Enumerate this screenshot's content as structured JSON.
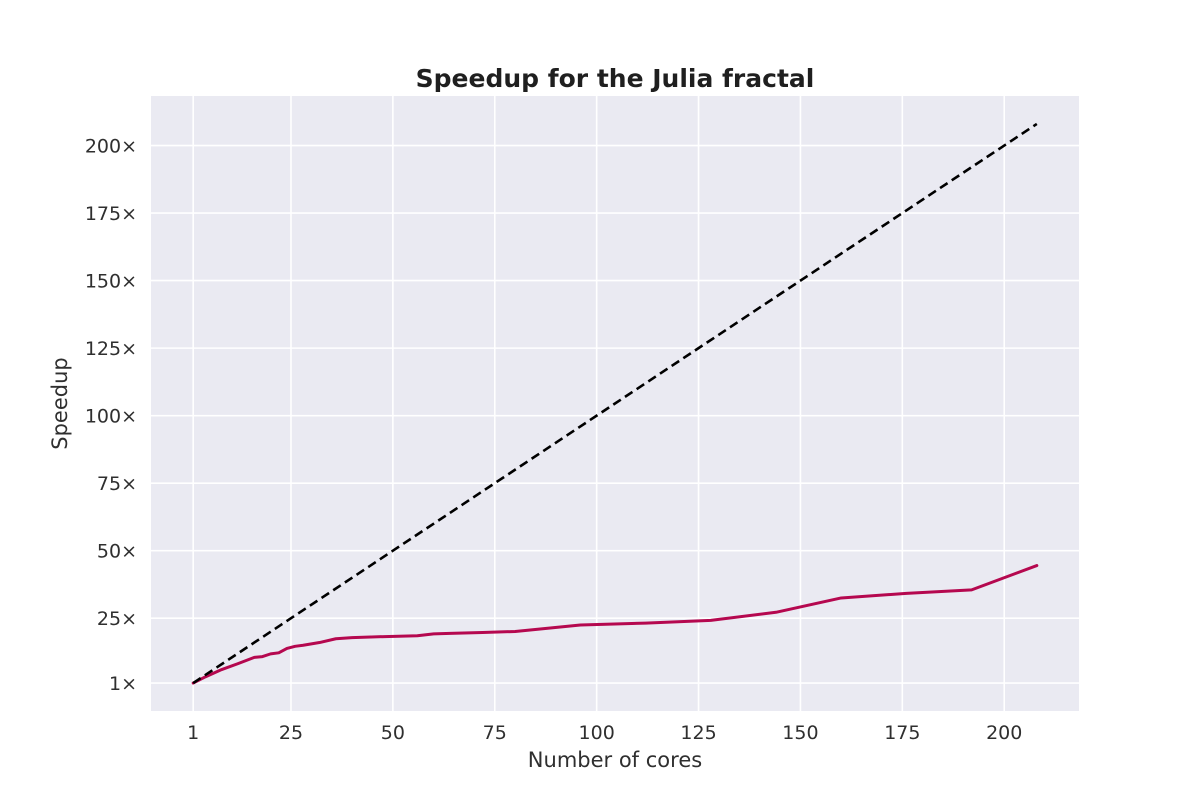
{
  "chart_data": {
    "type": "line",
    "title": "Speedup for the Julia fractal",
    "xlabel": "Number of cores",
    "ylabel": "Speedup",
    "xlim": [
      -9.35,
      218.35
    ],
    "ylim": [
      -9.35,
      218.35
    ],
    "x_ticks": [
      1,
      25,
      50,
      75,
      100,
      125,
      150,
      175,
      200
    ],
    "x_tick_labels": [
      "1",
      "25",
      "50",
      "75",
      "100",
      "125",
      "150",
      "175",
      "200"
    ],
    "y_ticks": [
      1,
      25,
      50,
      75,
      100,
      125,
      150,
      175,
      200
    ],
    "y_tick_labels": [
      "1×",
      "25×",
      "50×",
      "75×",
      "100×",
      "125×",
      "150×",
      "175×",
      "200×"
    ],
    "grid": true,
    "colors": {
      "background": "#eaeaf2",
      "grid": "#ffffff",
      "speedup_line": "#b5084f",
      "ideal_line": "#000000"
    },
    "series": [
      {
        "style": "solid",
        "color": "#b5084f",
        "x": [
          1,
          4,
          8,
          12,
          16,
          18,
          20,
          22,
          24,
          26,
          28,
          32,
          36,
          40,
          48,
          56,
          60,
          64,
          72,
          80,
          96,
          112,
          128,
          144,
          160,
          176,
          192,
          208
        ],
        "y": [
          1,
          3.3,
          6,
          8.2,
          10.5,
          10.8,
          11.8,
          12.2,
          13.8,
          14.6,
          15,
          16,
          17.4,
          17.8,
          18.2,
          18.5,
          19.2,
          19.4,
          19.7,
          20.1,
          22.5,
          23.2,
          24.2,
          27.2,
          32.5,
          34.2,
          35.5,
          44.5
        ]
      },
      {
        "style": "dashed",
        "color": "#000000",
        "x": [
          1,
          208
        ],
        "y": [
          1,
          208
        ]
      }
    ]
  }
}
